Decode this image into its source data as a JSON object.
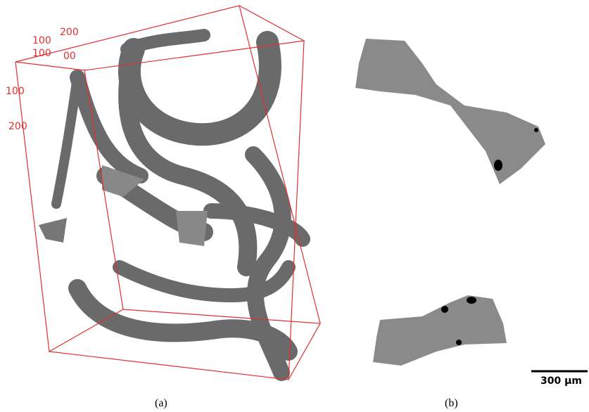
{
  "panel_a": {
    "axis_labels": [
      "100",
      "200",
      "100",
      "00",
      "100",
      "200"
    ],
    "caption": "(a)"
  },
  "panel_b": {
    "scale_bar": "300 µm",
    "caption": "(b)"
  }
}
